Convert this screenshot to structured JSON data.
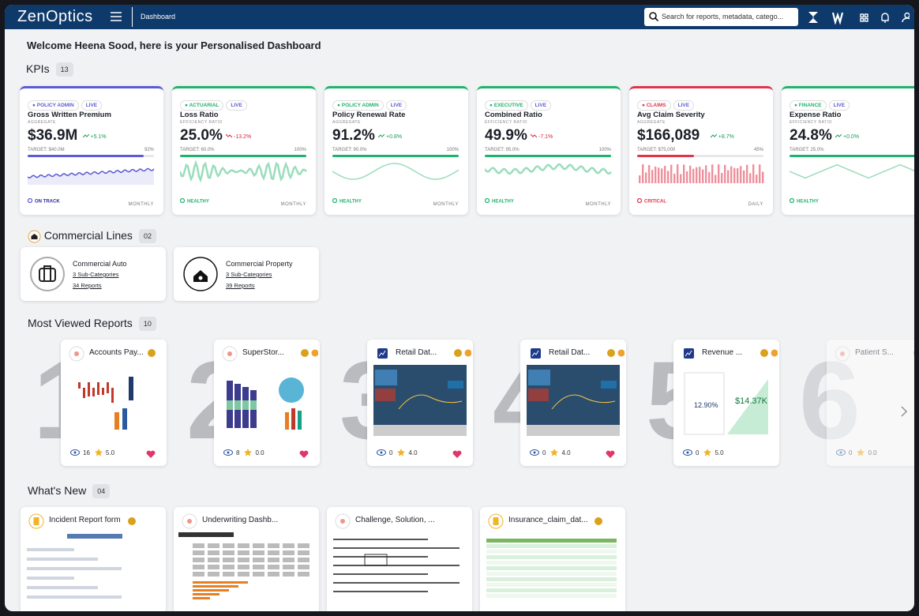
{
  "header": {
    "logo": "ZenOptics",
    "page": "Dashboard",
    "search_placeholder": "Search for reports, metadata, catego..."
  },
  "welcome": "Welcome Heena Sood, here is your Personalised Dashboard",
  "kpis": {
    "title": "KPIs",
    "count": "13",
    "cards": [
      {
        "tag": "POLICY ADMIN",
        "live": "LIVE",
        "name": "Gross Written Premium",
        "subtitle": "AGGREGATE",
        "value": "$36.9M",
        "change": "+5.1%",
        "target": "TARGET: $40.0M",
        "progress": "92%",
        "status": "ON TRACK",
        "period": "MONTHLY",
        "color": "#5b5bd6"
      },
      {
        "tag": "ACTUARIAL",
        "live": "LIVE",
        "name": "Loss Ratio",
        "subtitle": "EFFICIENCY RATIO",
        "value": "25.0%",
        "change": "-13.2%",
        "target": "TARGET: 60.0%",
        "progress": "100%",
        "status": "HEALTHY",
        "period": "MONTHLY",
        "color": "#1fb36b"
      },
      {
        "tag": "POLICY ADMIN",
        "live": "LIVE",
        "name": "Policy Renewal Rate",
        "subtitle": "AGGREGATE",
        "value": "91.2%",
        "change": "+0.8%",
        "target": "TARGET: 90.0%",
        "progress": "100%",
        "status": "HEALTHY",
        "period": "MONTHLY",
        "color": "#1fb36b"
      },
      {
        "tag": "EXECUTIVE",
        "live": "LIVE",
        "name": "Combined Ratio",
        "subtitle": "EFFICIENCY RATIO",
        "value": "49.9%",
        "change": "-7.1%",
        "target": "TARGET: 95.0%",
        "progress": "100%",
        "status": "HEALTHY",
        "period": "MONTHLY",
        "color": "#1fb36b"
      },
      {
        "tag": "CLAIMS",
        "live": "LIVE",
        "name": "Avg Claim Severity",
        "subtitle": "AGGREGATE",
        "value": "$166,089",
        "change": "+8.7%",
        "target": "TARGET: $75,000",
        "progress": "45%",
        "status": "CRITICAL",
        "period": "DAILY",
        "color": "#e0344b"
      },
      {
        "tag": "FINANCE",
        "live": "LIVE",
        "name": "Expense Ratio",
        "subtitle": "EFFICIENCY RATIO",
        "value": "24.8%",
        "change": "+0.0%",
        "target": "TARGET: 25.0%",
        "status": "HEALTHY",
        "color": "#1fb36b"
      }
    ]
  },
  "commercial_lines": {
    "title": "Commercial Lines",
    "count": "02",
    "items": [
      {
        "name": "Commercial Auto",
        "sub_categories": "3 Sub-Categories",
        "reports": "34 Reports"
      },
      {
        "name": "Commercial Property",
        "sub_categories": "3 Sub-Categories",
        "reports": "39 Reports"
      }
    ]
  },
  "most_viewed": {
    "title": "Most Viewed Reports",
    "count": "10",
    "items": [
      {
        "rank": 1,
        "title": "Accounts Pay...",
        "views": 16,
        "rating": "5.0"
      },
      {
        "rank": 2,
        "title": "SuperStor...",
        "views": 8,
        "rating": "0.0"
      },
      {
        "rank": 3,
        "title": "Retail Dat...",
        "views": 0,
        "rating": "4.0"
      },
      {
        "rank": 4,
        "title": "Retail Dat...",
        "views": 0,
        "rating": "4.0"
      },
      {
        "rank": 5,
        "title": "Revenue ...",
        "views": 0,
        "rating": "5.0",
        "thumbnail_labels": [
          "12.90%",
          "$14.37K"
        ]
      },
      {
        "rank": 6,
        "title": "Patient S...",
        "views": 0,
        "rating": "0.0"
      }
    ]
  },
  "whats_new": {
    "title": "What's New",
    "count": "04",
    "items": [
      {
        "title": "Incident Report form"
      },
      {
        "title": "Underwriting Dashb..."
      },
      {
        "title": "Challenge, Solution, ..."
      },
      {
        "title": "Insurance_claim_dat..."
      }
    ]
  }
}
